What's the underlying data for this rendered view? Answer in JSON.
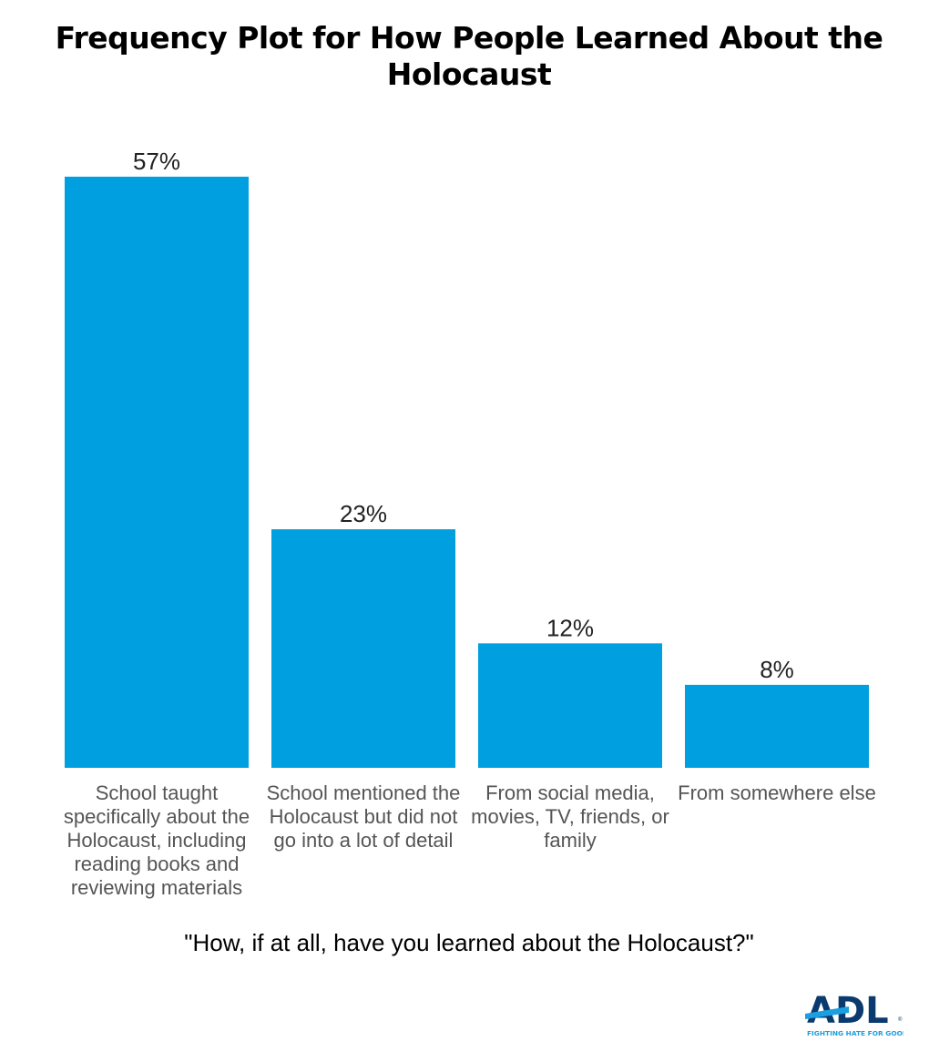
{
  "chart_data": {
    "type": "bar",
    "title": "Frequency Plot for How People Learned About the Holocaust",
    "xlabel": "\"How, if at all, have you learned about the Holocaust?\"",
    "ylabel": "",
    "categories": [
      "School taught specifically about the Holocaust, including reading books and reviewing materials",
      "School mentioned the Holocaust but did not go into a lot of detail",
      "From social media, movies, TV, friends, or family",
      "From somewhere else"
    ],
    "values": [
      57,
      23,
      12,
      8
    ],
    "data_labels": [
      "57%",
      "23%",
      "12%",
      "8%"
    ],
    "ylim": [
      0,
      57
    ],
    "grid": false,
    "bar_color": "#009fdf"
  },
  "logo": {
    "text": "ADL",
    "tagline": "FIGHTING HATE FOR GOOD",
    "navy": "#0b3a6e",
    "blue": "#1aa0e0"
  }
}
